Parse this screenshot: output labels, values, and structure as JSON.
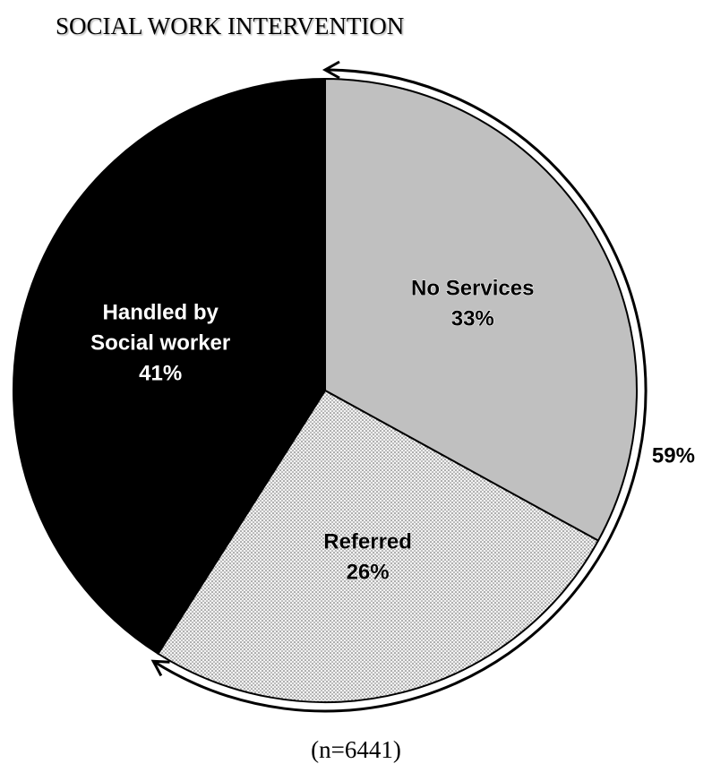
{
  "chart_data": {
    "type": "pie",
    "title": "SOCIAL WORK INTERVENTION",
    "note": "(n=6441)",
    "slices": [
      {
        "label": "No Services",
        "label_lines": [
          "No Services"
        ],
        "value": 33,
        "value_label": "33%",
        "color": "#c0c0c0",
        "pattern": "solid"
      },
      {
        "label": "Referred",
        "label_lines": [
          "Referred"
        ],
        "value": 26,
        "value_label": "26%",
        "color": "#e8e8e8",
        "pattern": "dotted"
      },
      {
        "label": "Handled by Social worker",
        "label_lines": [
          "Handled by",
          "Social worker"
        ],
        "value": 41,
        "value_label": "41%",
        "color": "#000000",
        "pattern": "solid"
      }
    ],
    "bracket": {
      "label": "59%",
      "spans": [
        "No Services",
        "Referred"
      ]
    }
  }
}
